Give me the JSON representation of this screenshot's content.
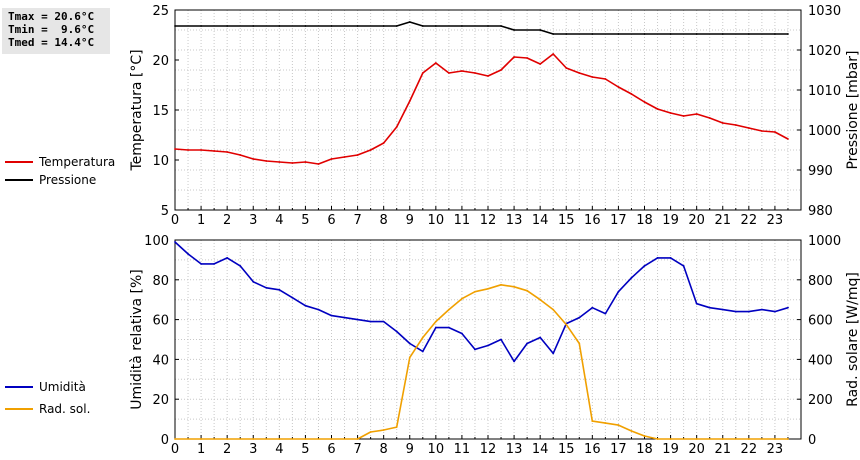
{
  "stats": {
    "tmax": "Tmax = 20.6°C",
    "tmin": "Tmin =  9.6°C",
    "tmed": "Tmed = 14.4°C"
  },
  "chart_data": [
    {
      "type": "line",
      "xlim": [
        0,
        24
      ],
      "x_ticks": [
        "0",
        "1",
        "2",
        "3",
        "4",
        "5",
        "6",
        "7",
        "8",
        "9",
        "10",
        "11",
        "12",
        "13",
        "14",
        "15",
        "16",
        "17",
        "18",
        "19",
        "20",
        "21",
        "22",
        "23"
      ],
      "ylabel": "Temperatura [°C]",
      "ylim": [
        5,
        25
      ],
      "y_ticks": [
        5,
        10,
        15,
        20,
        25
      ],
      "y2label": "Pressione [mbar]",
      "y2lim": [
        980,
        1030
      ],
      "y2_ticks": [
        980,
        990,
        1000,
        1010,
        1020,
        1030
      ],
      "grid": true,
      "legend_placement": "left",
      "series": [
        {
          "name": "Temperatura",
          "color": "#e00000",
          "axis": "left",
          "x": [
            0,
            0.5,
            1,
            1.5,
            2,
            2.5,
            3,
            3.5,
            4,
            4.5,
            5,
            5.5,
            6,
            6.5,
            7,
            7.5,
            8,
            8.5,
            9,
            9.5,
            10,
            10.5,
            11,
            11.5,
            12,
            12.5,
            13,
            13.5,
            14,
            14.5,
            15,
            15.5,
            16,
            16.5,
            17,
            17.5,
            18,
            18.5,
            19,
            19.5,
            20,
            20.5,
            21,
            21.5,
            22,
            22.5,
            23,
            23.5
          ],
          "values": [
            11.1,
            11.0,
            11.0,
            10.9,
            10.8,
            10.5,
            10.1,
            9.9,
            9.8,
            9.7,
            9.8,
            9.6,
            10.1,
            10.3,
            10.5,
            11.0,
            11.7,
            13.3,
            15.9,
            18.7,
            19.7,
            18.7,
            18.9,
            18.7,
            18.4,
            19.0,
            20.3,
            20.2,
            19.6,
            20.6,
            19.2,
            18.7,
            18.3,
            18.1,
            17.3,
            16.6,
            15.8,
            15.1,
            14.7,
            14.4,
            14.6,
            14.2,
            13.7,
            13.5,
            13.2,
            12.9,
            12.8,
            12.1
          ]
        },
        {
          "name": "Pressione",
          "color": "#000000",
          "axis": "right",
          "x": [
            0,
            1,
            2,
            3,
            4,
            5,
            6,
            7,
            8,
            8.5,
            9,
            9.5,
            10,
            11,
            12,
            12.5,
            13,
            14,
            14.5,
            15,
            16,
            17,
            18,
            19,
            20,
            21,
            22,
            23,
            23.5
          ],
          "values": [
            1026,
            1026,
            1026,
            1026,
            1026,
            1026,
            1026,
            1026,
            1026,
            1026,
            1027,
            1026,
            1026,
            1026,
            1026,
            1026,
            1025,
            1025,
            1024,
            1024,
            1024,
            1024,
            1024,
            1024,
            1024,
            1024,
            1024,
            1024,
            1024
          ]
        }
      ]
    },
    {
      "type": "line",
      "xlim": [
        0,
        24
      ],
      "x_ticks": [
        "0",
        "1",
        "2",
        "3",
        "4",
        "5",
        "6",
        "7",
        "8",
        "9",
        "10",
        "11",
        "12",
        "13",
        "14",
        "15",
        "16",
        "17",
        "18",
        "19",
        "20",
        "21",
        "22",
        "23"
      ],
      "ylabel": "Umidità relativa [%]",
      "ylim": [
        0,
        100
      ],
      "y_ticks": [
        0,
        20,
        40,
        60,
        80,
        100
      ],
      "y2label": "Rad. solare [W/mq]",
      "y2lim": [
        0,
        1000
      ],
      "y2_ticks": [
        0,
        200,
        400,
        600,
        800,
        1000
      ],
      "grid": true,
      "legend_placement": "left",
      "series": [
        {
          "name": "Umidità",
          "color": "#0000c0",
          "axis": "left",
          "x": [
            0,
            0.5,
            1,
            1.5,
            2,
            2.5,
            3,
            3.5,
            4,
            4.5,
            5,
            5.5,
            6,
            6.5,
            7,
            7.5,
            8,
            8.5,
            9,
            9.5,
            10,
            10.5,
            11,
            11.5,
            12,
            12.5,
            13,
            13.5,
            14,
            14.5,
            15,
            15.5,
            16,
            16.5,
            17,
            17.5,
            18,
            18.5,
            19,
            19.5,
            20,
            20.5,
            21,
            21.5,
            22,
            22.5,
            23,
            23.5
          ],
          "values": [
            99,
            93,
            88,
            88,
            91,
            87,
            79,
            76,
            75,
            71,
            67,
            65,
            62,
            61,
            60,
            59,
            59,
            54,
            48,
            44,
            56,
            56,
            53,
            45,
            47,
            50,
            39,
            48,
            51,
            43,
            58,
            61,
            66,
            63,
            74,
            81,
            87,
            91,
            91,
            87,
            68,
            66,
            65,
            64,
            64,
            65,
            64,
            66
          ]
        },
        {
          "name": "Rad. sol.",
          "color": "#f0a000",
          "axis": "right",
          "x": [
            0,
            1,
            2,
            3,
            4,
            5,
            6,
            7,
            7.5,
            8,
            8.5,
            9,
            9.5,
            10,
            10.5,
            11,
            11.5,
            12,
            12.5,
            13,
            13.5,
            14,
            14.5,
            15,
            15.5,
            16,
            16.5,
            17,
            17.5,
            18,
            18.5,
            19,
            20,
            21,
            22,
            23,
            23.5
          ],
          "values": [
            0,
            0,
            0,
            0,
            0,
            0,
            0,
            0,
            35,
            45,
            60,
            410,
            510,
            590,
            650,
            705,
            740,
            755,
            775,
            765,
            745,
            700,
            650,
            575,
            480,
            90,
            80,
            70,
            40,
            15,
            0,
            0,
            0,
            0,
            0,
            0,
            0
          ]
        }
      ]
    }
  ]
}
